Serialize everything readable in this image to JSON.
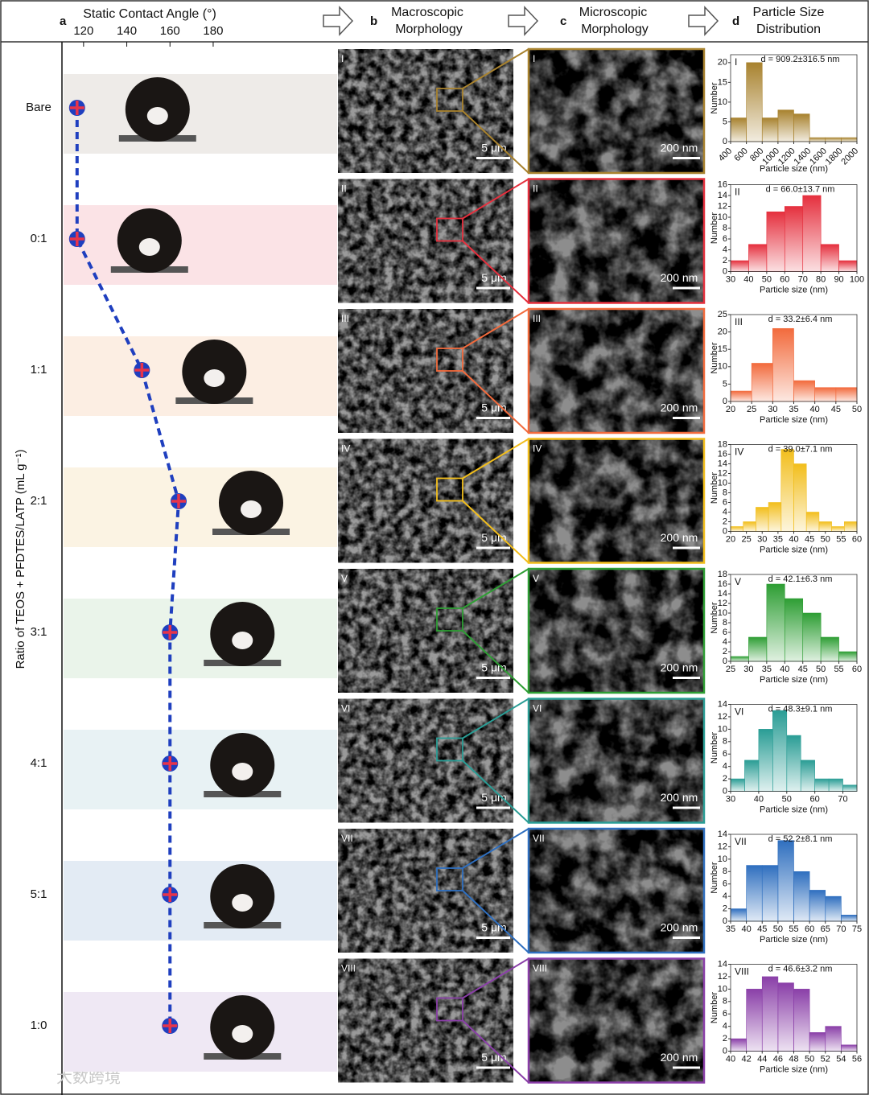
{
  "header": {
    "a_letter": "a",
    "a_title": "Static Contact Angle (°)",
    "b_letter": "b",
    "b_title": [
      "Macroscopic",
      "Morphology"
    ],
    "c_letter": "c",
    "c_title": [
      "Microscopic",
      "Morphology"
    ],
    "d_letter": "d",
    "d_title": [
      "Particle Size",
      "Distribution"
    ]
  },
  "contact_angle": {
    "type": "line",
    "ylabel": "Ratio of TEOS + PFDTES/LATP (mL g⁻¹)",
    "categories": [
      "Bare",
      "0:1",
      "1:1",
      "2:1",
      "3:1",
      "4:1",
      "5:1",
      "1:0"
    ],
    "values": [
      117,
      117,
      147,
      164,
      160,
      160,
      160,
      160
    ],
    "xlim": [
      110,
      237
    ],
    "xticks": [
      120,
      140,
      160,
      180
    ],
    "line_color": "#1f3fbf",
    "band_colors": [
      "#eeebe8",
      "#fbe3e6",
      "#fceee3",
      "#fbf3e3",
      "#eaf4ea",
      "#e8f2f4",
      "#e3ebf4",
      "#efe8f4"
    ]
  },
  "row_labels": [
    "I",
    "II",
    "III",
    "IV",
    "V",
    "VI",
    "VII",
    "VIII"
  ],
  "macro_scale": "5 μm",
  "micro_scale": "200 nm",
  "distributions": [
    {
      "title": "d = 909.2±316.5 nm",
      "bins": [
        400,
        600,
        800,
        1000,
        1200,
        1400,
        1600,
        1800,
        2000
      ],
      "counts": [
        6,
        20,
        6,
        8,
        7,
        1,
        1,
        1
      ],
      "xticks": [
        400,
        600,
        800,
        1000,
        1200,
        1400,
        1600,
        1800,
        2000
      ],
      "ylim": [
        0,
        22
      ],
      "yticks": [
        0,
        5,
        10,
        15,
        20
      ],
      "color": "#a8822e"
    },
    {
      "title": "d = 66.0±13.7 nm",
      "bins": [
        30,
        40,
        50,
        60,
        70,
        80,
        90,
        100
      ],
      "counts": [
        2,
        5,
        11,
        12,
        14,
        5,
        2
      ],
      "xticks": [
        30,
        40,
        50,
        60,
        70,
        80,
        90,
        100
      ],
      "ylim": [
        0,
        16
      ],
      "yticks": [
        0,
        2,
        4,
        6,
        8,
        10,
        12,
        14,
        16
      ],
      "color": "#e5303e"
    },
    {
      "title": "d = 33.2±6.4 nm",
      "bins": [
        20,
        25,
        30,
        35,
        40,
        45,
        50
      ],
      "counts": [
        3,
        11,
        21,
        6,
        4,
        4
      ],
      "xticks": [
        20,
        25,
        30,
        35,
        40,
        45,
        50
      ],
      "ylim": [
        0,
        25
      ],
      "yticks": [
        0,
        5,
        10,
        15,
        20,
        25
      ],
      "color": "#f26a3c"
    },
    {
      "title": "d = 39.0±7.1 nm",
      "bins": [
        20,
        24,
        28,
        32,
        36,
        40,
        44,
        48,
        52,
        56,
        60
      ],
      "counts": [
        1,
        2,
        5,
        6,
        17,
        14,
        4,
        2,
        1,
        2
      ],
      "xticks": [
        20,
        25,
        30,
        35,
        40,
        45,
        50,
        55,
        60
      ],
      "ylim": [
        0,
        18
      ],
      "yticks": [
        0,
        2,
        4,
        6,
        8,
        10,
        12,
        14,
        16,
        18
      ],
      "color": "#f2be1c"
    },
    {
      "title": "d = 42.1±6.3 nm",
      "bins": [
        25,
        30,
        35,
        40,
        45,
        50,
        55,
        60
      ],
      "counts": [
        1,
        5,
        16,
        13,
        10,
        5,
        2
      ],
      "xticks": [
        25,
        30,
        35,
        40,
        45,
        50,
        55,
        60
      ],
      "ylim": [
        0,
        18
      ],
      "yticks": [
        0,
        2,
        4,
        6,
        8,
        10,
        12,
        14,
        16,
        18
      ],
      "color": "#2e9e34"
    },
    {
      "title": "d = 48.3±9.1 nm",
      "bins": [
        30,
        35,
        40,
        45,
        50,
        55,
        60,
        65,
        70,
        75
      ],
      "counts": [
        2,
        5,
        10,
        13,
        9,
        5,
        2,
        2,
        1
      ],
      "xticks": [
        30,
        40,
        50,
        60,
        70
      ],
      "ylim": [
        0,
        14
      ],
      "yticks": [
        0,
        2,
        4,
        6,
        8,
        10,
        12,
        14
      ],
      "color": "#2a9d95"
    },
    {
      "title": "d = 52.2±8.1 nm",
      "bins": [
        35,
        40,
        45,
        50,
        55,
        60,
        65,
        70,
        75
      ],
      "counts": [
        2,
        9,
        9,
        13,
        8,
        5,
        4,
        1
      ],
      "xticks": [
        35,
        40,
        45,
        50,
        55,
        60,
        65,
        70,
        75
      ],
      "ylim": [
        0,
        14
      ],
      "yticks": [
        0,
        2,
        4,
        6,
        8,
        10,
        12,
        14
      ],
      "color": "#2f6fbf"
    },
    {
      "title": "d = 46.6±3.2 nm",
      "bins": [
        40,
        42,
        44,
        46,
        48,
        50,
        52,
        54,
        56
      ],
      "counts": [
        2,
        10,
        12,
        11,
        10,
        3,
        4,
        1
      ],
      "xticks": [
        40,
        42,
        44,
        46,
        48,
        50,
        52,
        54,
        56
      ],
      "ylim": [
        0,
        14
      ],
      "yticks": [
        0,
        2,
        4,
        6,
        8,
        10,
        12,
        14
      ],
      "color": "#8a3fa8"
    }
  ],
  "hist_ylabel": "Number",
  "hist_xlabel": "Particle size (nm)",
  "watermark": "大数跨境"
}
